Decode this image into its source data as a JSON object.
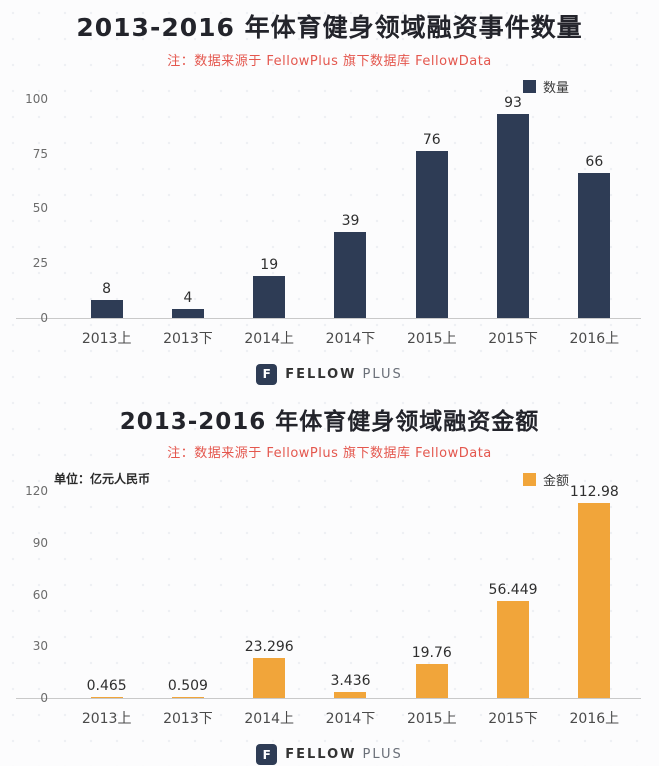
{
  "chart_data": [
    {
      "type": "bar",
      "title": "2013-2016 年体育健身领域融资事件数量",
      "subtitle": "注：数据来源于 FellowPlus 旗下数据库 FellowData",
      "legend": "数量",
      "legend_position": "top-right",
      "unit_label": "",
      "categories": [
        "2013上",
        "2013下",
        "2014上",
        "2014下",
        "2015上",
        "2015下",
        "2016上"
      ],
      "values": [
        8,
        4,
        19,
        39,
        76,
        93,
        66
      ],
      "bar_color": "#2e3c55",
      "yticks": [
        0,
        25,
        50,
        75,
        100
      ],
      "ylim": [
        0,
        100
      ],
      "xlabel": "",
      "ylabel": "",
      "grid": false,
      "subtitle_color": "#e4574e"
    },
    {
      "type": "bar",
      "title": "2013-2016 年体育健身领域融资金额",
      "subtitle": "注：数据来源于 FellowPlus 旗下数据库 FellowData",
      "legend": "金额",
      "legend_position": "top-right",
      "unit_label": "单位：亿元人民币",
      "categories": [
        "2013上",
        "2013下",
        "2014上",
        "2014下",
        "2015上",
        "2015下",
        "2016上"
      ],
      "values": [
        0.465,
        0.509,
        23.296,
        3.436,
        19.76,
        56.449,
        112.98
      ],
      "bar_color": "#f1a53a",
      "yticks": [
        0,
        30,
        60,
        90,
        120
      ],
      "ylim": [
        0,
        120
      ],
      "xlabel": "",
      "ylabel": "",
      "grid": false,
      "subtitle_color": "#e4574e"
    }
  ],
  "brand": {
    "logo_glyph": "F",
    "name_bold": "FELLOW",
    "name_light": "PLUS"
  }
}
